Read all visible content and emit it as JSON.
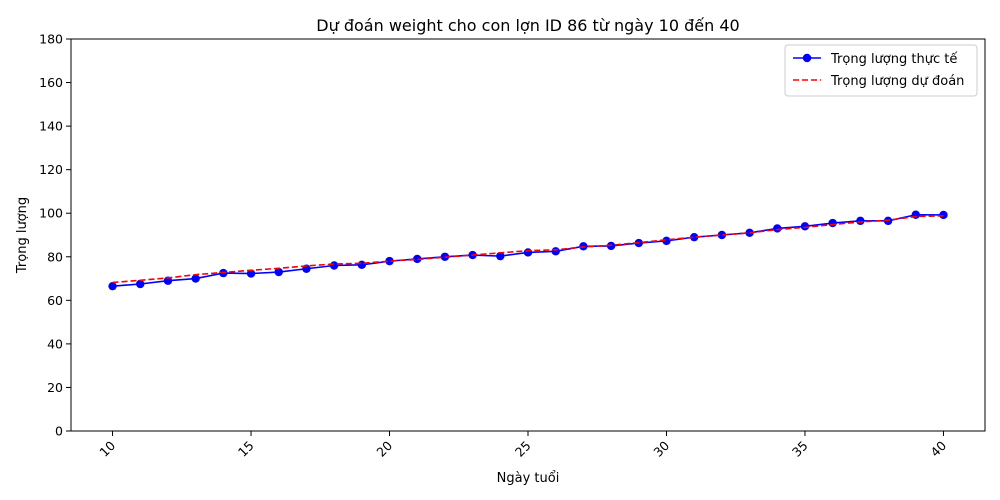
{
  "chart_data": {
    "type": "line",
    "title": "Dự đoán weight cho con lợn ID 86 từ ngày 10 đến 40",
    "xlabel": "Ngày tuổi",
    "ylabel": "Trọng lượng",
    "xlim": [
      8.5,
      41.5
    ],
    "ylim": [
      0,
      180
    ],
    "xticks": [
      10,
      15,
      20,
      25,
      30,
      35,
      40
    ],
    "yticks": [
      0,
      20,
      40,
      60,
      80,
      100,
      120,
      140,
      160,
      180
    ],
    "grid": false,
    "legend_position": "top-right",
    "x": [
      10,
      11,
      12,
      13,
      14,
      15,
      16,
      17,
      18,
      19,
      20,
      21,
      22,
      23,
      24,
      25,
      26,
      27,
      28,
      29,
      30,
      31,
      32,
      33,
      34,
      35,
      36,
      37,
      38,
      39,
      40
    ],
    "series": [
      {
        "name": "Trọng lượng thực tế",
        "color": "#0000ff",
        "style": "solid-marker",
        "values": [
          66.5,
          67.5,
          69.0,
          70.0,
          72.5,
          72.3,
          73.0,
          74.5,
          76.0,
          76.3,
          78.0,
          79.0,
          80.0,
          80.8,
          80.3,
          82.0,
          82.5,
          84.8,
          85.0,
          86.3,
          87.3,
          89.0,
          90.0,
          91.0,
          93.0,
          94.0,
          95.5,
          96.5,
          96.5,
          99.3,
          99.2
        ]
      },
      {
        "name": "Trọng lượng dự đoán",
        "color": "#ff0000",
        "style": "dashed",
        "values": [
          68.2,
          69.2,
          70.3,
          71.8,
          72.8,
          73.8,
          74.7,
          75.8,
          76.7,
          77.0,
          78.0,
          78.8,
          79.8,
          80.8,
          81.8,
          82.8,
          83.2,
          84.5,
          85.3,
          86.5,
          87.8,
          89.0,
          90.0,
          91.0,
          92.5,
          93.5,
          94.8,
          96.0,
          96.8,
          98.5,
          98.8
        ]
      }
    ]
  }
}
